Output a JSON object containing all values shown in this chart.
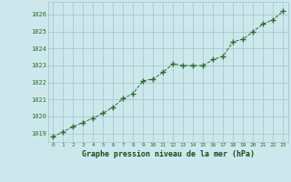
{
  "x": [
    0,
    1,
    2,
    3,
    4,
    5,
    6,
    7,
    8,
    9,
    10,
    11,
    12,
    13,
    14,
    15,
    16,
    17,
    18,
    19,
    20,
    21,
    22,
    23
  ],
  "y": [
    1018.8,
    1019.1,
    1019.4,
    1019.65,
    1019.9,
    1020.2,
    1020.55,
    1021.05,
    1021.35,
    1022.1,
    1022.2,
    1022.6,
    1023.1,
    1023.0,
    1023.0,
    1023.0,
    1023.35,
    1023.55,
    1024.4,
    1024.55,
    1025.0,
    1025.45,
    1025.7,
    1026.2
  ],
  "line_color": "#2d6a2d",
  "marker_color": "#2d6a2d",
  "bg_color": "#cce8ec",
  "grid_color": "#a0c4c8",
  "xlabel": "Graphe pression niveau de la mer (hPa)",
  "xlabel_color": "#1a4a1a",
  "tick_label_color": "#2d6a2d",
  "ylim": [
    1018.5,
    1026.75
  ],
  "xlim": [
    -0.5,
    23.5
  ],
  "yticks": [
    1019,
    1020,
    1021,
    1022,
    1023,
    1024,
    1025,
    1026
  ],
  "xticks": [
    0,
    1,
    2,
    3,
    4,
    5,
    6,
    7,
    8,
    9,
    10,
    11,
    12,
    13,
    14,
    15,
    16,
    17,
    18,
    19,
    20,
    21,
    22,
    23
  ],
  "xtick_labels": [
    "0",
    "1",
    "2",
    "3",
    "4",
    "5",
    "6",
    "7",
    "8",
    "9",
    "10",
    "11",
    "12",
    "13",
    "14",
    "15",
    "16",
    "17",
    "18",
    "19",
    "20",
    "21",
    "22",
    "23"
  ]
}
